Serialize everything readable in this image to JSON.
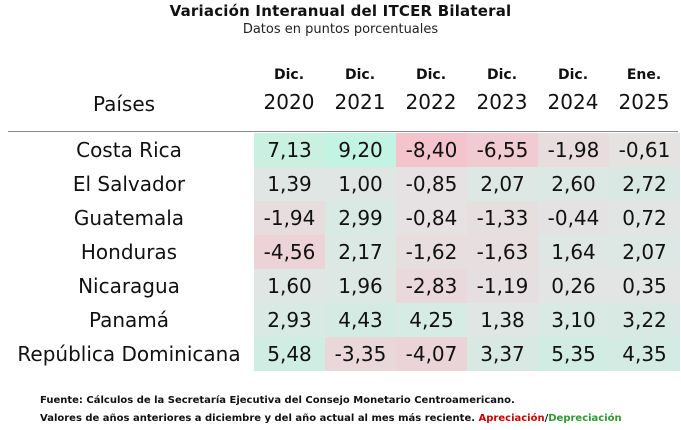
{
  "chart_data": {
    "type": "table",
    "title": "Variación Interanual del ITCER Bilateral",
    "subtitle": "Datos en puntos porcentuales",
    "row_header": "Países",
    "columns": [
      {
        "month": "Dic.",
        "year": "2020"
      },
      {
        "month": "Dic.",
        "year": "2021"
      },
      {
        "month": "Dic.",
        "year": "2022"
      },
      {
        "month": "Dic.",
        "year": "2023"
      },
      {
        "month": "Dic.",
        "year": "2024"
      },
      {
        "month": "Ene.",
        "year": "2025"
      }
    ],
    "rows": [
      {
        "country": "Costa Rica",
        "values": [
          "7,13",
          "9,20",
          "-8,40",
          "-6,55",
          "-1,98",
          "-0,61"
        ],
        "numeric": [
          7.13,
          9.2,
          -8.4,
          -6.55,
          -1.98,
          -0.61
        ]
      },
      {
        "country": "El Salvador",
        "values": [
          "1,39",
          "1,00",
          "-0,85",
          "2,07",
          "2,60",
          "2,72"
        ],
        "numeric": [
          1.39,
          1.0,
          -0.85,
          2.07,
          2.6,
          2.72
        ]
      },
      {
        "country": "Guatemala",
        "values": [
          "-1,94",
          "2,99",
          "-0,84",
          "-1,33",
          "-0,44",
          "0,72"
        ],
        "numeric": [
          -1.94,
          2.99,
          -0.84,
          -1.33,
          -0.44,
          0.72
        ]
      },
      {
        "country": "Honduras",
        "values": [
          "-4,56",
          "2,17",
          "-1,62",
          "-1,63",
          "1,64",
          "2,07"
        ],
        "numeric": [
          -4.56,
          2.17,
          -1.62,
          -1.63,
          1.64,
          2.07
        ]
      },
      {
        "country": "Nicaragua",
        "values": [
          "1,60",
          "1,96",
          "-2,83",
          "-1,19",
          "0,26",
          "0,35"
        ],
        "numeric": [
          1.6,
          1.96,
          -2.83,
          -1.19,
          0.26,
          0.35
        ]
      },
      {
        "country": "Panamá",
        "values": [
          "2,93",
          "4,43",
          "4,25",
          "1,38",
          "3,10",
          "3,22"
        ],
        "numeric": [
          2.93,
          4.43,
          4.25,
          1.38,
          3.1,
          3.22
        ]
      },
      {
        "country": "República Dominicana",
        "values": [
          "5,48",
          "-3,35",
          "-4,07",
          "3,37",
          "5,35",
          "4,35"
        ],
        "numeric": [
          5.48,
          -3.35,
          -4.07,
          3.37,
          5.35,
          4.35
        ]
      }
    ],
    "color_scale": {
      "min_color": "#f3c4cc",
      "mid_color": "#e4e4e4",
      "max_color": "#c3f3e2",
      "min": -8.4,
      "max": 9.2
    }
  },
  "footer": {
    "source": "Fuente: Cálculos de la Secretaría Ejecutiva del Consejo Monetario Centroamericano.",
    "note": "Valores de años anteriores a diciembre y del año actual al mes más reciente. ",
    "appreciation": "Apreciación",
    "slash": "/",
    "depreciation": "Depreciación",
    "appreciation_color": "#cc0000",
    "depreciation_color": "#2e9b2e"
  }
}
